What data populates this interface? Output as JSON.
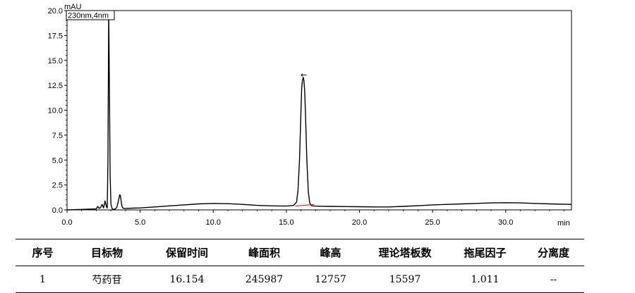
{
  "chart_data": {
    "type": "line",
    "y_unit": "mAU",
    "x_unit": "min",
    "legend": "230nm,4nm",
    "xlim": [
      0,
      34.5
    ],
    "ylim": [
      0,
      20
    ],
    "x_ticks": [
      "0.0",
      "5.0",
      "10.0",
      "15.0",
      "20.0",
      "25.0",
      "30.0"
    ],
    "x_tick_values": [
      0,
      5,
      10,
      15,
      20,
      25,
      30
    ],
    "y_ticks": [
      "0.0",
      "2.5",
      "5.0",
      "7.5",
      "10.0",
      "12.5",
      "15.0",
      "17.5",
      "20.0"
    ],
    "y_tick_values": [
      0,
      2.5,
      5,
      7.5,
      10,
      12.5,
      15,
      17.5,
      20
    ],
    "peak_marker": "←",
    "series": [
      {
        "color": "#000000",
        "x": [
          0,
          1.0,
          2.0,
          2.1,
          2.2,
          2.3,
          2.4,
          2.5,
          2.6,
          2.7,
          2.75,
          2.8,
          2.85,
          2.9,
          2.95,
          3.0,
          3.05,
          3.1,
          3.15,
          3.2,
          3.3,
          3.4,
          3.5,
          3.6,
          3.65,
          3.7,
          3.75,
          3.8,
          3.9,
          4.0,
          4.5,
          5.0,
          6.0,
          7.0,
          8.0,
          9.0,
          10.0,
          11.0,
          12.0,
          13.0,
          14.0,
          15.0,
          15.5,
          15.7,
          15.8,
          15.9,
          16.0,
          16.05,
          16.1,
          16.154,
          16.2,
          16.25,
          16.3,
          16.4,
          16.5,
          16.6,
          16.7,
          16.8,
          17.0,
          17.5,
          18.0,
          19.0,
          20.0,
          21.0,
          22.0,
          23.0,
          24.0,
          25.0,
          26.0,
          27.0,
          28.0,
          29.0,
          30.0,
          31.0,
          32.0,
          33.0,
          34.5
        ],
        "y": [
          0.0,
          0.05,
          0.1,
          0.35,
          0.15,
          0.25,
          0.55,
          0.2,
          0.9,
          0.3,
          0.2,
          5.0,
          20.0,
          12.0,
          3.5,
          0.6,
          0.3,
          0.1,
          0.05,
          0.05,
          0.1,
          0.25,
          0.8,
          1.5,
          1.45,
          0.9,
          0.4,
          0.2,
          0.15,
          0.15,
          0.18,
          0.2,
          0.3,
          0.4,
          0.5,
          0.6,
          0.65,
          0.62,
          0.55,
          0.45,
          0.4,
          0.38,
          0.45,
          0.8,
          2.0,
          5.0,
          10.0,
          12.2,
          13.0,
          13.3,
          13.0,
          12.0,
          10.0,
          5.0,
          1.8,
          0.7,
          0.45,
          0.4,
          0.38,
          0.36,
          0.35,
          0.33,
          0.32,
          0.3,
          0.3,
          0.35,
          0.42,
          0.5,
          0.55,
          0.6,
          0.65,
          0.7,
          0.72,
          0.7,
          0.65,
          0.6,
          0.55
        ]
      },
      {
        "color": "#ff0000",
        "x": [
          15.6,
          16.154,
          16.9
        ],
        "y": [
          0.38,
          0.45,
          0.55
        ]
      }
    ]
  },
  "table": {
    "headers": [
      "序号",
      "目标物",
      "保留时间",
      "峰面积",
      "峰高",
      "理论塔板数",
      "拖尾因子",
      "分离度"
    ],
    "rows": [
      [
        "1",
        "芍药苷",
        "16.154",
        "245987",
        "12757",
        "15597",
        "1.011",
        "--"
      ]
    ]
  }
}
